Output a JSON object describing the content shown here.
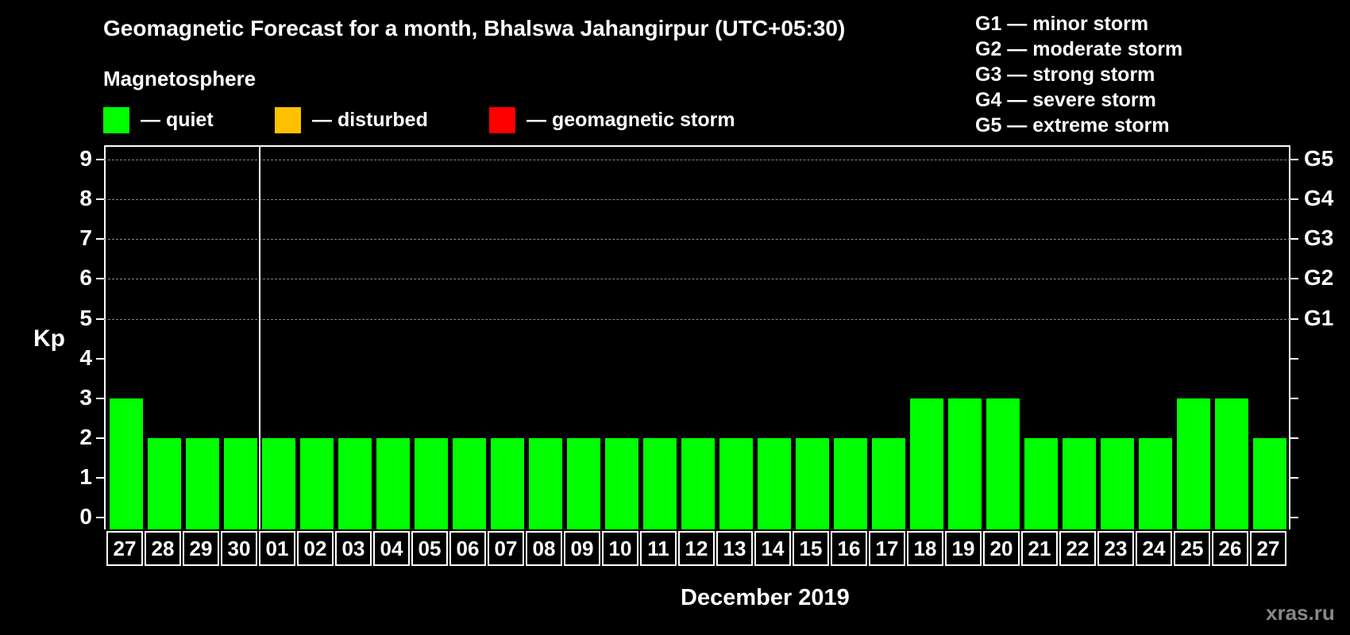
{
  "header": {
    "title": "Geomagnetic Forecast for a month, Bhalswa Jahangirpur (UTC+05:30)",
    "subtitle": "Magnetosphere"
  },
  "legend": [
    {
      "label": "— quiet",
      "color": "#00ff00"
    },
    {
      "label": "— disturbed",
      "color": "#ffc000"
    },
    {
      "label": "— geomagnetic storm",
      "color": "#ff0000"
    }
  ],
  "storm_scale": [
    "G1 — minor storm",
    "G2 — moderate storm",
    "G3 — strong storm",
    "G4 — severe storm",
    "G5 — extreme storm"
  ],
  "axes": {
    "ylabel": "Kp",
    "xlabel": "December 2019",
    "yticks": [
      "0",
      "1",
      "2",
      "3",
      "4",
      "5",
      "6",
      "7",
      "8",
      "9"
    ],
    "right_labels": [
      {
        "kp": 5,
        "label": "G1"
      },
      {
        "kp": 6,
        "label": "G2"
      },
      {
        "kp": 7,
        "label": "G3"
      },
      {
        "kp": 8,
        "label": "G4"
      },
      {
        "kp": 9,
        "label": "G5"
      }
    ]
  },
  "footer": {
    "brand": "xras.ru"
  },
  "chart_data": {
    "type": "bar",
    "title": "Geomagnetic Forecast for a month, Bhalswa Jahangirpur (UTC+05:30)",
    "subtitle": "Magnetosphere",
    "xlabel": "December 2019",
    "ylabel": "Kp",
    "ylim": [
      0,
      9
    ],
    "grid": "dashed horizontal at Kp 5-9",
    "legend_position": "top",
    "categories": [
      "27",
      "28",
      "29",
      "30",
      "01",
      "02",
      "03",
      "04",
      "05",
      "06",
      "07",
      "08",
      "09",
      "10",
      "11",
      "12",
      "13",
      "14",
      "15",
      "16",
      "17",
      "18",
      "19",
      "20",
      "21",
      "22",
      "23",
      "24",
      "25",
      "26",
      "27"
    ],
    "values": [
      3,
      2,
      2,
      2,
      2,
      2,
      2,
      2,
      2,
      2,
      2,
      2,
      2,
      2,
      2,
      2,
      2,
      2,
      2,
      2,
      2,
      3,
      3,
      3,
      2,
      2,
      2,
      2,
      3,
      3,
      2
    ],
    "bar_color": "#00ff00",
    "month_separator_after": "30",
    "right_axis_labels": {
      "5": "G1",
      "6": "G2",
      "7": "G3",
      "8": "G4",
      "9": "G5"
    }
  }
}
